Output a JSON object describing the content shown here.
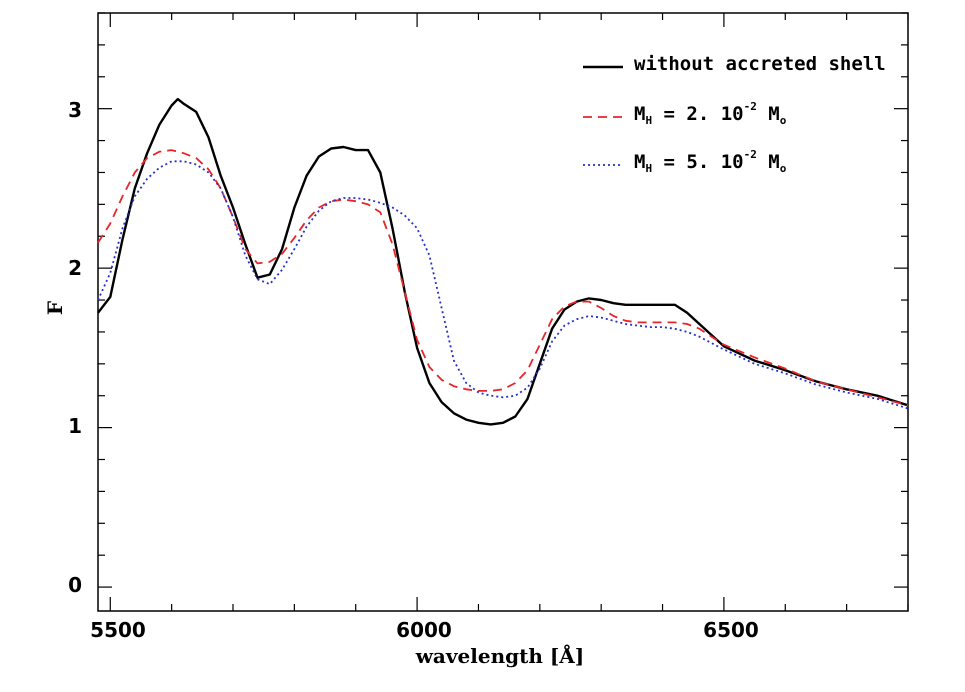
{
  "chart_data": {
    "type": "line",
    "title": "",
    "xlabel": "wavelength [Å]",
    "ylabel": "F",
    "xlim": [
      5480,
      6800
    ],
    "ylim": [
      -0.15,
      3.6
    ],
    "x_ticks": [
      5500,
      6000,
      6500
    ],
    "x_tick_labels": [
      "5500",
      "6000",
      "6500"
    ],
    "y_ticks": [
      0,
      1,
      2,
      3
    ],
    "y_tick_labels": [
      "0",
      "1",
      "2",
      "3"
    ],
    "x_minor_step": 100,
    "y_minor_step": 0.2,
    "legend_position": "top-right",
    "legend": [
      {
        "key": "without",
        "label": "without accreted shell"
      },
      {
        "key": "mh2",
        "label_main": "M",
        "label_sub": "H",
        "label_mid": " = 2. 10",
        "label_sup": "-2",
        "label_tail": " M",
        "label_tail_sub": "o"
      },
      {
        "key": "mh5",
        "label_main": "M",
        "label_sub": "H",
        "label_mid": " = 5. 10",
        "label_sup": "-2",
        "label_tail": " M",
        "label_tail_sub": "o"
      }
    ],
    "series": [
      {
        "name": "without accreted shell",
        "color": "#000000",
        "style": "solid",
        "x": [
          5480,
          5500,
          5520,
          5540,
          5560,
          5580,
          5600,
          5610,
          5620,
          5640,
          5660,
          5680,
          5700,
          5720,
          5740,
          5760,
          5780,
          5800,
          5820,
          5840,
          5860,
          5880,
          5900,
          5920,
          5940,
          5960,
          5980,
          6000,
          6020,
          6040,
          6060,
          6080,
          6100,
          6120,
          6140,
          6160,
          6180,
          6200,
          6220,
          6240,
          6260,
          6280,
          6300,
          6320,
          6340,
          6360,
          6380,
          6400,
          6420,
          6440,
          6460,
          6480,
          6500,
          6550,
          6600,
          6650,
          6700,
          6750,
          6800
        ],
        "y": [
          1.72,
          1.82,
          2.18,
          2.5,
          2.72,
          2.9,
          3.02,
          3.06,
          3.03,
          2.98,
          2.82,
          2.58,
          2.38,
          2.15,
          1.94,
          1.96,
          2.12,
          2.38,
          2.58,
          2.7,
          2.75,
          2.76,
          2.74,
          2.74,
          2.6,
          2.25,
          1.85,
          1.5,
          1.28,
          1.16,
          1.09,
          1.05,
          1.03,
          1.02,
          1.03,
          1.07,
          1.18,
          1.4,
          1.62,
          1.74,
          1.79,
          1.81,
          1.8,
          1.78,
          1.77,
          1.77,
          1.77,
          1.77,
          1.77,
          1.72,
          1.65,
          1.58,
          1.51,
          1.42,
          1.36,
          1.29,
          1.24,
          1.2,
          1.14
        ]
      },
      {
        "name": "M_H = 2. 10^-2 M_o",
        "color": "#e8252a",
        "style": "dashed",
        "x": [
          5480,
          5500,
          5520,
          5540,
          5560,
          5580,
          5600,
          5620,
          5640,
          5660,
          5680,
          5700,
          5720,
          5740,
          5760,
          5780,
          5800,
          5820,
          5840,
          5860,
          5880,
          5900,
          5920,
          5940,
          5960,
          5980,
          6000,
          6020,
          6040,
          6060,
          6080,
          6100,
          6120,
          6140,
          6160,
          6180,
          6200,
          6220,
          6240,
          6260,
          6280,
          6300,
          6320,
          6340,
          6360,
          6380,
          6400,
          6420,
          6440,
          6460,
          6480,
          6500,
          6550,
          6600,
          6650,
          6700,
          6750,
          6800
        ],
        "y": [
          2.16,
          2.28,
          2.45,
          2.6,
          2.69,
          2.73,
          2.74,
          2.72,
          2.69,
          2.62,
          2.5,
          2.32,
          2.12,
          2.03,
          2.04,
          2.09,
          2.19,
          2.3,
          2.38,
          2.42,
          2.43,
          2.42,
          2.4,
          2.35,
          2.15,
          1.85,
          1.55,
          1.38,
          1.3,
          1.26,
          1.24,
          1.23,
          1.23,
          1.24,
          1.28,
          1.36,
          1.52,
          1.68,
          1.76,
          1.79,
          1.79,
          1.75,
          1.7,
          1.67,
          1.66,
          1.66,
          1.66,
          1.66,
          1.65,
          1.62,
          1.57,
          1.52,
          1.44,
          1.37,
          1.29,
          1.24,
          1.19,
          1.14
        ]
      },
      {
        "name": "M_H = 5. 10^-2 M_o",
        "color": "#2630c9",
        "style": "dotted",
        "x": [
          5480,
          5500,
          5520,
          5540,
          5560,
          5580,
          5600,
          5620,
          5640,
          5660,
          5680,
          5700,
          5720,
          5740,
          5760,
          5780,
          5800,
          5820,
          5840,
          5860,
          5880,
          5900,
          5920,
          5940,
          5960,
          5980,
          6000,
          6020,
          6040,
          6060,
          6080,
          6100,
          6120,
          6140,
          6160,
          6180,
          6200,
          6220,
          6240,
          6260,
          6280,
          6300,
          6320,
          6340,
          6360,
          6380,
          6400,
          6420,
          6440,
          6460,
          6480,
          6500,
          6550,
          6600,
          6650,
          6700,
          6750,
          6800
        ],
        "y": [
          1.8,
          1.97,
          2.25,
          2.45,
          2.56,
          2.63,
          2.67,
          2.67,
          2.65,
          2.6,
          2.5,
          2.32,
          2.08,
          1.93,
          1.9,
          1.99,
          2.12,
          2.26,
          2.36,
          2.42,
          2.44,
          2.44,
          2.43,
          2.41,
          2.38,
          2.33,
          2.25,
          2.08,
          1.75,
          1.42,
          1.28,
          1.22,
          1.2,
          1.19,
          1.2,
          1.25,
          1.37,
          1.54,
          1.64,
          1.68,
          1.7,
          1.69,
          1.67,
          1.65,
          1.64,
          1.63,
          1.63,
          1.62,
          1.6,
          1.57,
          1.53,
          1.49,
          1.4,
          1.34,
          1.27,
          1.22,
          1.18,
          1.12
        ]
      }
    ]
  }
}
